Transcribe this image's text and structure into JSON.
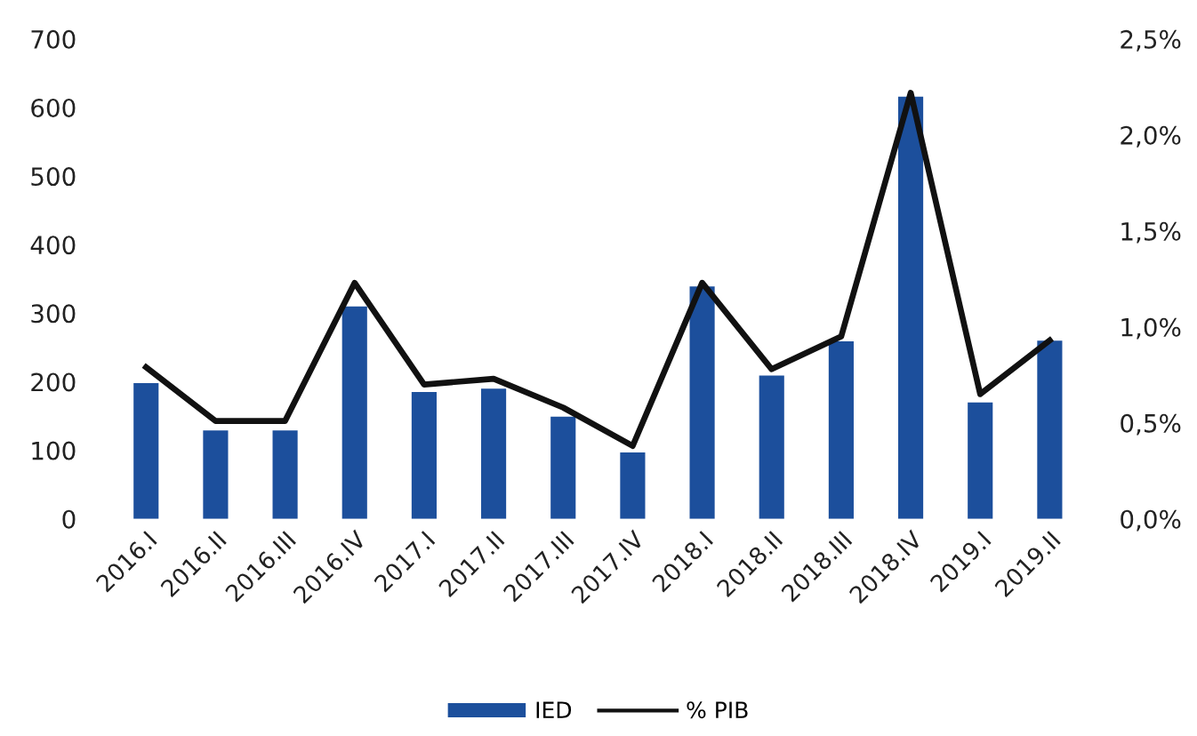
{
  "chart_data": {
    "type": "bar",
    "categories": [
      "2016.I",
      "2016.II",
      "2016.III",
      "2016.IV",
      "2017.I",
      "2017.II",
      "2017.III",
      "2017.IV",
      "2018.I",
      "2018.II",
      "2018.III",
      "2018.IV",
      "2019.I",
      "2019.II"
    ],
    "series": [
      {
        "name": "IED",
        "color": "#1c4f9c",
        "values": [
          198,
          129,
          129,
          310,
          185,
          190,
          149,
          97,
          339,
          209,
          259,
          616,
          170,
          260
        ]
      },
      {
        "name": "% PIB",
        "type": "line",
        "axis": "y2",
        "color": "#111111",
        "values": [
          0.79,
          0.51,
          0.51,
          1.23,
          0.7,
          0.73,
          0.58,
          0.38,
          1.23,
          0.78,
          0.95,
          2.22,
          0.65,
          0.93
        ]
      }
    ],
    "ylim": [
      0,
      700
    ],
    "yticks": [
      0,
      100,
      200,
      300,
      400,
      500,
      600,
      700
    ],
    "y2lim": [
      0,
      2.5
    ],
    "y2ticks": [
      {
        "value": 0,
        "label": "0,0%"
      },
      {
        "value": 0.5,
        "label": "0,5%"
      },
      {
        "value": 1.0,
        "label": "1,0%"
      },
      {
        "value": 1.5,
        "label": "1,5%"
      },
      {
        "value": 2.0,
        "label": "2,0%"
      },
      {
        "value": 2.5,
        "label": "2,5%"
      }
    ],
    "grid": false,
    "legend": "bottom",
    "marker": "none",
    "line_style": "solid"
  }
}
